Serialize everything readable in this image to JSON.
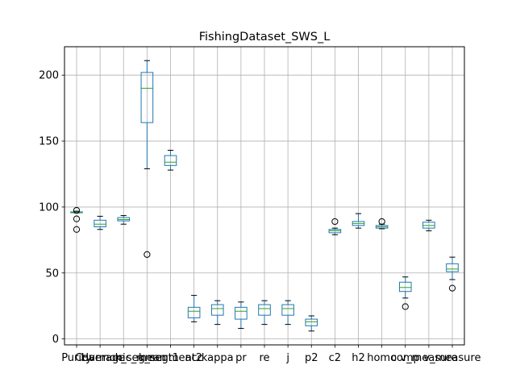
{
  "chart_data": {
    "type": "box",
    "title": "FishingDataset_SWS_L",
    "xlabel": "",
    "ylabel": "",
    "ylim": [
      -4.5,
      221.5
    ],
    "yticks": [
      0,
      50,
      100,
      150,
      200
    ],
    "grid": true,
    "colors": {
      "box": "#1f77b4",
      "median": "#2ca02c",
      "whisker": "#000000",
      "flier": "#000000",
      "grid": "#b0b0b0"
    },
    "categories": [
      "Purity",
      "Coverage",
      "Harmonic_mean",
      "k_segment1",
      "k_segment2",
      "acc",
      "kappa",
      "pr",
      "re",
      "j",
      "p2",
      "c2",
      "h2",
      "homo",
      "comp",
      "v_measure"
    ],
    "boxes": [
      {
        "label": "Purity",
        "whislo": 95.5,
        "q1": 95.8,
        "med": 96.0,
        "q3": 96.3,
        "whishi": 96.8,
        "fliers": [
          97.5,
          91,
          83
        ]
      },
      {
        "label": "Coverage",
        "whislo": 83,
        "q1": 85,
        "med": 87,
        "q3": 90,
        "whishi": 93,
        "fliers": []
      },
      {
        "label": "Harmonic_mean",
        "whislo": 87,
        "q1": 89.5,
        "med": 90.5,
        "q3": 92,
        "whishi": 93.5,
        "fliers": []
      },
      {
        "label": "k_segment1",
        "whislo": 129,
        "q1": 164,
        "med": 190,
        "q3": 202,
        "whishi": 211,
        "fliers": [
          64
        ]
      },
      {
        "label": "k_segment2",
        "whislo": 128,
        "q1": 131.5,
        "med": 134,
        "q3": 139,
        "whishi": 143,
        "fliers": []
      },
      {
        "label": "acc",
        "whislo": 13,
        "q1": 16,
        "med": 21,
        "q3": 24,
        "whishi": 33,
        "fliers": []
      },
      {
        "label": "kappa",
        "whislo": 11,
        "q1": 18,
        "med": 23,
        "q3": 26,
        "whishi": 29,
        "fliers": []
      },
      {
        "label": "pr",
        "whislo": 8,
        "q1": 15,
        "med": 21,
        "q3": 24,
        "whishi": 28,
        "fliers": []
      },
      {
        "label": "re",
        "whislo": 11,
        "q1": 18,
        "med": 23,
        "q3": 26,
        "whishi": 29,
        "fliers": []
      },
      {
        "label": "j",
        "whislo": 11,
        "q1": 18,
        "med": 23,
        "q3": 26,
        "whishi": 29,
        "fliers": []
      },
      {
        "label": "p2",
        "whislo": 6,
        "q1": 10,
        "med": 13,
        "q3": 15,
        "whishi": 17.5,
        "fliers": []
      },
      {
        "label": "c2",
        "whislo": 79,
        "q1": 80.5,
        "med": 82,
        "q3": 83,
        "whishi": 84,
        "fliers": [
          89
        ]
      },
      {
        "label": "h2",
        "whislo": 84,
        "q1": 86,
        "med": 87.5,
        "q3": 89,
        "whishi": 95,
        "fliers": []
      },
      {
        "label": "homo",
        "whislo": 83.5,
        "q1": 84,
        "med": 85,
        "q3": 86,
        "whishi": 87,
        "fliers": [
          89
        ]
      },
      {
        "label": "comp",
        "whislo": 31,
        "q1": 36,
        "med": 39,
        "q3": 43,
        "whishi": 47,
        "fliers": [
          24.5
        ]
      },
      {
        "label": "v_measure",
        "whislo": 82,
        "q1": 84,
        "med": 86,
        "q3": 88.5,
        "whishi": 90,
        "fliers": []
      }
    ],
    "extra_box": {
      "label": "v_measure",
      "whislo": 45,
      "q1": 51,
      "med": 53,
      "q3": 57,
      "whishi": 62,
      "fliers": [
        38.5
      ]
    }
  }
}
